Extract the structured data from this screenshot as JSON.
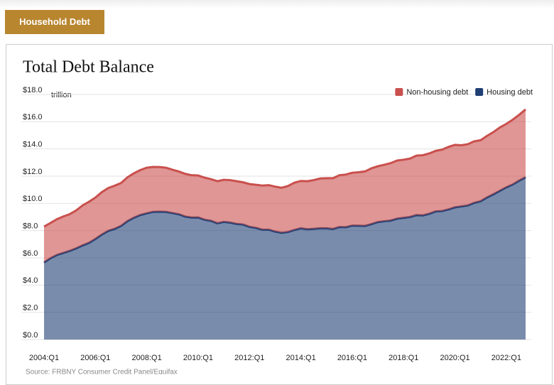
{
  "header": {
    "badge": "Household Debt"
  },
  "source": "Source: FRBNY Consumer Credit Panel/Equifax",
  "chart_data": {
    "type": "stacked_area",
    "title": "Total Debt Balance",
    "y_unit": "trillion",
    "categories": [
      "2004:Q1",
      null,
      null,
      null,
      null,
      null,
      null,
      null,
      "2006:Q1",
      null,
      null,
      null,
      null,
      null,
      null,
      null,
      "2008:Q1",
      null,
      null,
      null,
      null,
      null,
      null,
      null,
      "2010:Q1",
      null,
      null,
      null,
      null,
      null,
      null,
      null,
      "2012:Q1",
      null,
      null,
      null,
      null,
      null,
      null,
      null,
      "2014:Q1",
      null,
      null,
      null,
      null,
      null,
      null,
      null,
      "2016:Q1",
      null,
      null,
      null,
      null,
      null,
      null,
      null,
      "2018:Q1",
      null,
      null,
      null,
      null,
      null,
      null,
      null,
      "2020:Q1",
      null,
      null,
      null,
      null,
      null,
      null,
      null,
      "2022:Q1",
      null,
      null,
      null
    ],
    "series": [
      {
        "name": "Housing debt",
        "color": "#1f3f75",
        "values": [
          5.66,
          5.97,
          6.21,
          6.36,
          6.51,
          6.7,
          6.91,
          7.1,
          7.39,
          7.71,
          7.98,
          8.13,
          8.35,
          8.7,
          8.95,
          9.15,
          9.27,
          9.38,
          9.39,
          9.38,
          9.29,
          9.2,
          9.03,
          8.96,
          8.97,
          8.8,
          8.72,
          8.54,
          8.64,
          8.59,
          8.49,
          8.45,
          8.28,
          8.2,
          8.07,
          8.07,
          7.93,
          7.84,
          7.9,
          8.05,
          8.17,
          8.1,
          8.13,
          8.17,
          8.17,
          8.12,
          8.26,
          8.25,
          8.37,
          8.36,
          8.35,
          8.48,
          8.63,
          8.69,
          8.74,
          8.88,
          8.94,
          9.0,
          9.14,
          9.12,
          9.24,
          9.41,
          9.44,
          9.56,
          9.71,
          9.78,
          9.85,
          10.04,
          10.16,
          10.44,
          10.67,
          10.93,
          11.18,
          11.39,
          11.67,
          11.92
        ]
      },
      {
        "name": "Non-housing debt",
        "color": "#c9504d",
        "values": [
          2.63,
          2.59,
          2.63,
          2.68,
          2.7,
          2.78,
          2.94,
          3.02,
          3.04,
          3.12,
          3.15,
          3.17,
          3.15,
          3.22,
          3.26,
          3.3,
          3.35,
          3.3,
          3.28,
          3.24,
          3.18,
          3.14,
          3.14,
          3.11,
          3.08,
          3.09,
          3.06,
          3.09,
          3.09,
          3.12,
          3.14,
          3.1,
          3.14,
          3.17,
          3.24,
          3.27,
          3.3,
          3.31,
          3.38,
          3.47,
          3.48,
          3.53,
          3.58,
          3.66,
          3.68,
          3.73,
          3.81,
          3.87,
          3.88,
          3.93,
          4.0,
          4.1,
          4.1,
          4.15,
          4.22,
          4.27,
          4.27,
          4.29,
          4.37,
          4.42,
          4.43,
          4.45,
          4.51,
          4.59,
          4.59,
          4.49,
          4.5,
          4.52,
          4.48,
          4.52,
          4.57,
          4.65,
          4.66,
          4.76,
          4.84,
          4.98
        ]
      }
    ],
    "ylim": [
      0,
      18
    ],
    "yticks": [
      {
        "value": 0,
        "label": "$0.0"
      },
      {
        "value": 2,
        "label": "$2.0"
      },
      {
        "value": 4,
        "label": "$4.0"
      },
      {
        "value": 6,
        "label": "$6.0"
      },
      {
        "value": 8,
        "label": "$8.0"
      },
      {
        "value": 10,
        "label": "$10.0"
      },
      {
        "value": 12,
        "label": "$12.0"
      },
      {
        "value": 14,
        "label": "$14.0"
      },
      {
        "value": 16,
        "label": "$16.0"
      },
      {
        "value": 18,
        "label": "$18.0"
      }
    ],
    "grid": true,
    "legend": "top-right"
  }
}
